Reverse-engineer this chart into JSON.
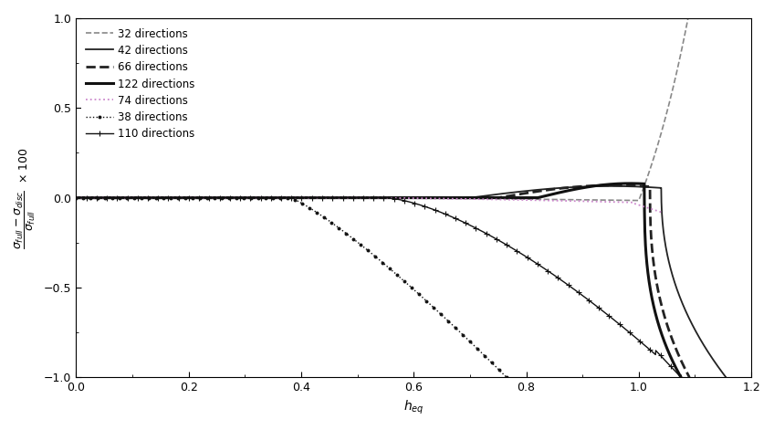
{
  "title": "",
  "xlabel": "h_{eq}",
  "xlim": [
    0.0,
    1.2
  ],
  "ylim": [
    -1.0,
    1.0
  ],
  "xticks": [
    0.0,
    0.2,
    0.4,
    0.6,
    0.8,
    1.0,
    1.2
  ],
  "yticks": [
    -1.0,
    -0.5,
    0.0,
    0.5,
    1.0
  ],
  "series": [
    {
      "label": "32 directions",
      "color": "#888888",
      "linestyle": "dashed",
      "linewidth": 1.2,
      "marker": null,
      "markersize": 0,
      "curve_type": "32dir"
    },
    {
      "label": "42 directions",
      "color": "#222222",
      "linestyle": "solid",
      "linewidth": 1.3,
      "marker": null,
      "markersize": 0,
      "curve_type": "42dir"
    },
    {
      "label": "66 directions",
      "color": "#222222",
      "linestyle": "dashed",
      "linewidth": 2.0,
      "marker": null,
      "markersize": 0,
      "curve_type": "66dir"
    },
    {
      "label": "122 directions",
      "color": "#111111",
      "linestyle": "solid",
      "linewidth": 2.2,
      "marker": null,
      "markersize": 0,
      "curve_type": "122dir"
    },
    {
      "label": "74 directions",
      "color": "#cc88cc",
      "linestyle": "dotted",
      "linewidth": 1.3,
      "marker": null,
      "markersize": 0,
      "curve_type": "74dir"
    },
    {
      "label": "38 directions",
      "color": "#111111",
      "linestyle": "dotted",
      "linewidth": 1.0,
      "marker": ".",
      "markersize": 4,
      "curve_type": "38dir"
    },
    {
      "label": "110 directions",
      "color": "#111111",
      "linestyle": "solid",
      "linewidth": 1.0,
      "marker": "+",
      "markersize": 4,
      "curve_type": "110dir"
    }
  ],
  "background_color": "#ffffff",
  "legend_fontsize": 8.5,
  "axis_fontsize": 10
}
